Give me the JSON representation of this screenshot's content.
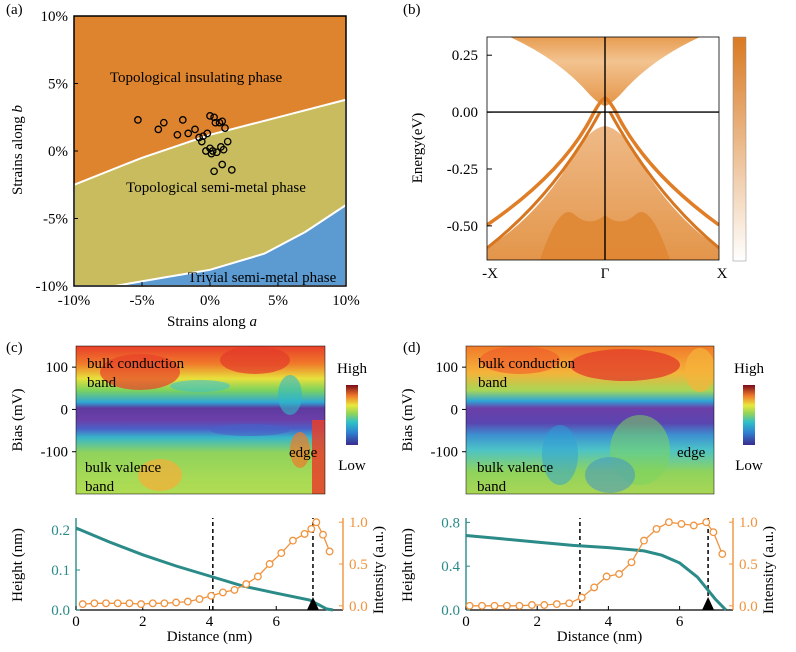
{
  "colors": {
    "topo_insulating": "#DE842F",
    "topo_semimetal": "#C8BC5E",
    "trivial": "#5C9BD2",
    "band_orange": "#E08A36",
    "teal": "#2B8B88",
    "intensity_orange": "#F0933E"
  },
  "chart_data": [
    {
      "panel": "(a)",
      "type": "scatter",
      "xlabel_prefix": "Strains along ",
      "xlabel_var": "a",
      "ylabel_prefix": "Strains along ",
      "ylabel_var": "b",
      "xlim": [
        -10,
        10
      ],
      "ylim": [
        -10,
        10
      ],
      "xticks": [
        "-10%",
        "-5%",
        "0%",
        "5%",
        "10%"
      ],
      "yticks": [
        "-10%",
        "-5%",
        "0%",
        "5%",
        "10%"
      ],
      "regions": [
        "Topological insulating phase",
        "Topological semi-metal phase",
        "Trivial semi-metal phase"
      ],
      "upper_boundary": {
        "x": [
          -10,
          -5,
          0,
          5,
          10
        ],
        "y": [
          -2.5,
          -0.5,
          1.2,
          2.5,
          3.8
        ]
      },
      "lower_boundary": {
        "x": [
          -7,
          -3,
          0,
          4,
          7,
          10
        ],
        "y": [
          -10,
          -9.3,
          -8.8,
          -7.6,
          -6,
          -4
        ]
      },
      "points": {
        "x": [
          -5.3,
          -3.8,
          -3.4,
          -2.4,
          -2.0,
          -1.6,
          -1.1,
          -0.8,
          -0.5,
          -0.2,
          0.0,
          0.0,
          0.3,
          0.4,
          0.7,
          0.9,
          1.1,
          1.3,
          -0.3,
          0.2,
          0.5,
          0.8,
          1.0,
          0.3,
          0.9,
          1.6,
          -0.6,
          0.1
        ],
        "y": [
          2.3,
          1.6,
          2.1,
          1.2,
          2.3,
          1.3,
          1.6,
          1.0,
          1.1,
          1.3,
          2.6,
          0.2,
          2.5,
          2.1,
          2.1,
          2.2,
          1.7,
          0.7,
          0.0,
          0.0,
          -0.1,
          0.3,
          0.1,
          -1.5,
          -1.0,
          -1.4,
          0.7,
          -0.2
        ]
      }
    },
    {
      "panel": "(b)",
      "type": "heatmap",
      "ylabel": "Energy(eV)",
      "xticks": [
        "-X",
        "Γ",
        "X"
      ],
      "ylim": [
        -0.65,
        0.33
      ],
      "yticks": [
        "0.25",
        "0.00",
        "-0.25",
        "-0.50"
      ],
      "ytick_values": [
        0.25,
        0.0,
        -0.25,
        -0.5
      ]
    },
    {
      "panel": "(c)",
      "type": "heatmap+line",
      "ylabel_top": "Bias (mV)",
      "bias_ticks": [
        "100",
        "0",
        "-100"
      ],
      "bias_values": [
        100,
        0,
        -100
      ],
      "bias_range": [
        -200,
        150
      ],
      "labels": {
        "conduction": [
          "bulk conduction",
          "band"
        ],
        "valence": [
          "bulk valence",
          "band"
        ],
        "edge": "edge"
      },
      "colorbar": {
        "high": "High",
        "low": "Low"
      },
      "xlabel": "Distance (nm)",
      "xlim": [
        0,
        8
      ],
      "xticks": [
        "0",
        "2",
        "4",
        "6"
      ],
      "xtick_values": [
        0,
        2,
        4,
        6
      ],
      "height_label": "Height (nm)",
      "height_ylim": [
        0,
        0.23
      ],
      "height_ticks": [
        "0.0",
        "0.1",
        "0.2"
      ],
      "height_tick_values": [
        0,
        0.1,
        0.2
      ],
      "intensity_label": "Intensity (a.u.)",
      "intensity_ylim": [
        -0.05,
        1.05
      ],
      "intensity_ticks": [
        "0.0",
        "0.5",
        "1.0"
      ],
      "intensity_tick_values": [
        0,
        0.5,
        1.0
      ],
      "dashed_lines": [
        4.1,
        7.1
      ],
      "height_curve": {
        "x": [
          0,
          1,
          2,
          3,
          4,
          5,
          6,
          7,
          7.3,
          7.5,
          7.7
        ],
        "y": [
          0.205,
          0.17,
          0.138,
          0.11,
          0.085,
          0.06,
          0.042,
          0.025,
          0.012,
          0.003,
          0
        ]
      },
      "intensity_curve": {
        "x": [
          0.2,
          0.55,
          0.9,
          1.25,
          1.6,
          1.95,
          2.3,
          2.65,
          3.0,
          3.35,
          3.7,
          4.05,
          4.4,
          4.75,
          5.1,
          5.45,
          5.8,
          6.15,
          6.5,
          6.85,
          7.05,
          7.2,
          7.4,
          7.6
        ],
        "y": [
          0.02,
          0.03,
          0.03,
          0.03,
          0.03,
          0.02,
          0.03,
          0.03,
          0.04,
          0.05,
          0.08,
          0.12,
          0.16,
          0.19,
          0.26,
          0.35,
          0.5,
          0.63,
          0.78,
          0.86,
          0.92,
          1.0,
          0.85,
          0.65
        ]
      }
    },
    {
      "panel": "(d)",
      "type": "heatmap+line",
      "ylabel_top": "Bias (mV)",
      "bias_ticks": [
        "100",
        "0",
        "-100"
      ],
      "bias_values": [
        100,
        0,
        -100
      ],
      "bias_range": [
        -200,
        150
      ],
      "labels": {
        "conduction": [
          "bulk conduction",
          "band"
        ],
        "valence": [
          "bulk valence",
          "band"
        ],
        "edge": "edge"
      },
      "colorbar": {
        "high": "High",
        "low": "Low"
      },
      "xlabel": "Distance (nm)",
      "xlim": [
        0,
        7.5
      ],
      "xticks": [
        "0",
        "2",
        "4",
        "6"
      ],
      "xtick_values": [
        0,
        2,
        4,
        6
      ],
      "height_label": "Height (nm)",
      "height_ylim": [
        0,
        0.84
      ],
      "height_ticks": [
        "0.0",
        "0.4",
        "0.8"
      ],
      "height_tick_values": [
        0,
        0.4,
        0.8
      ],
      "intensity_label": "Intensity (a.u.)",
      "intensity_ylim": [
        -0.05,
        1.05
      ],
      "intensity_ticks": [
        "0.0",
        "0.5",
        "1.0"
      ],
      "intensity_tick_values": [
        0,
        0.5,
        1.0
      ],
      "dashed_lines": [
        3.2,
        6.8
      ],
      "height_curve": {
        "x": [
          0,
          1,
          2,
          3,
          4,
          5,
          5.5,
          6,
          6.5,
          7,
          7.3
        ],
        "y": [
          0.68,
          0.65,
          0.62,
          0.59,
          0.57,
          0.54,
          0.5,
          0.43,
          0.3,
          0.1,
          0
        ]
      },
      "intensity_curve": {
        "x": [
          0.1,
          0.45,
          0.8,
          1.15,
          1.5,
          1.85,
          2.2,
          2.55,
          2.9,
          3.25,
          3.6,
          3.95,
          4.3,
          4.65,
          5.0,
          5.35,
          5.7,
          6.05,
          6.4,
          6.75,
          6.95,
          7.2
        ],
        "y": [
          0.0,
          0.0,
          0.0,
          0.0,
          0.0,
          0.01,
          0.01,
          0.02,
          0.03,
          0.1,
          0.22,
          0.35,
          0.38,
          0.52,
          0.78,
          0.92,
          1.0,
          0.98,
          0.96,
          1.0,
          0.88,
          0.62
        ]
      }
    }
  ]
}
